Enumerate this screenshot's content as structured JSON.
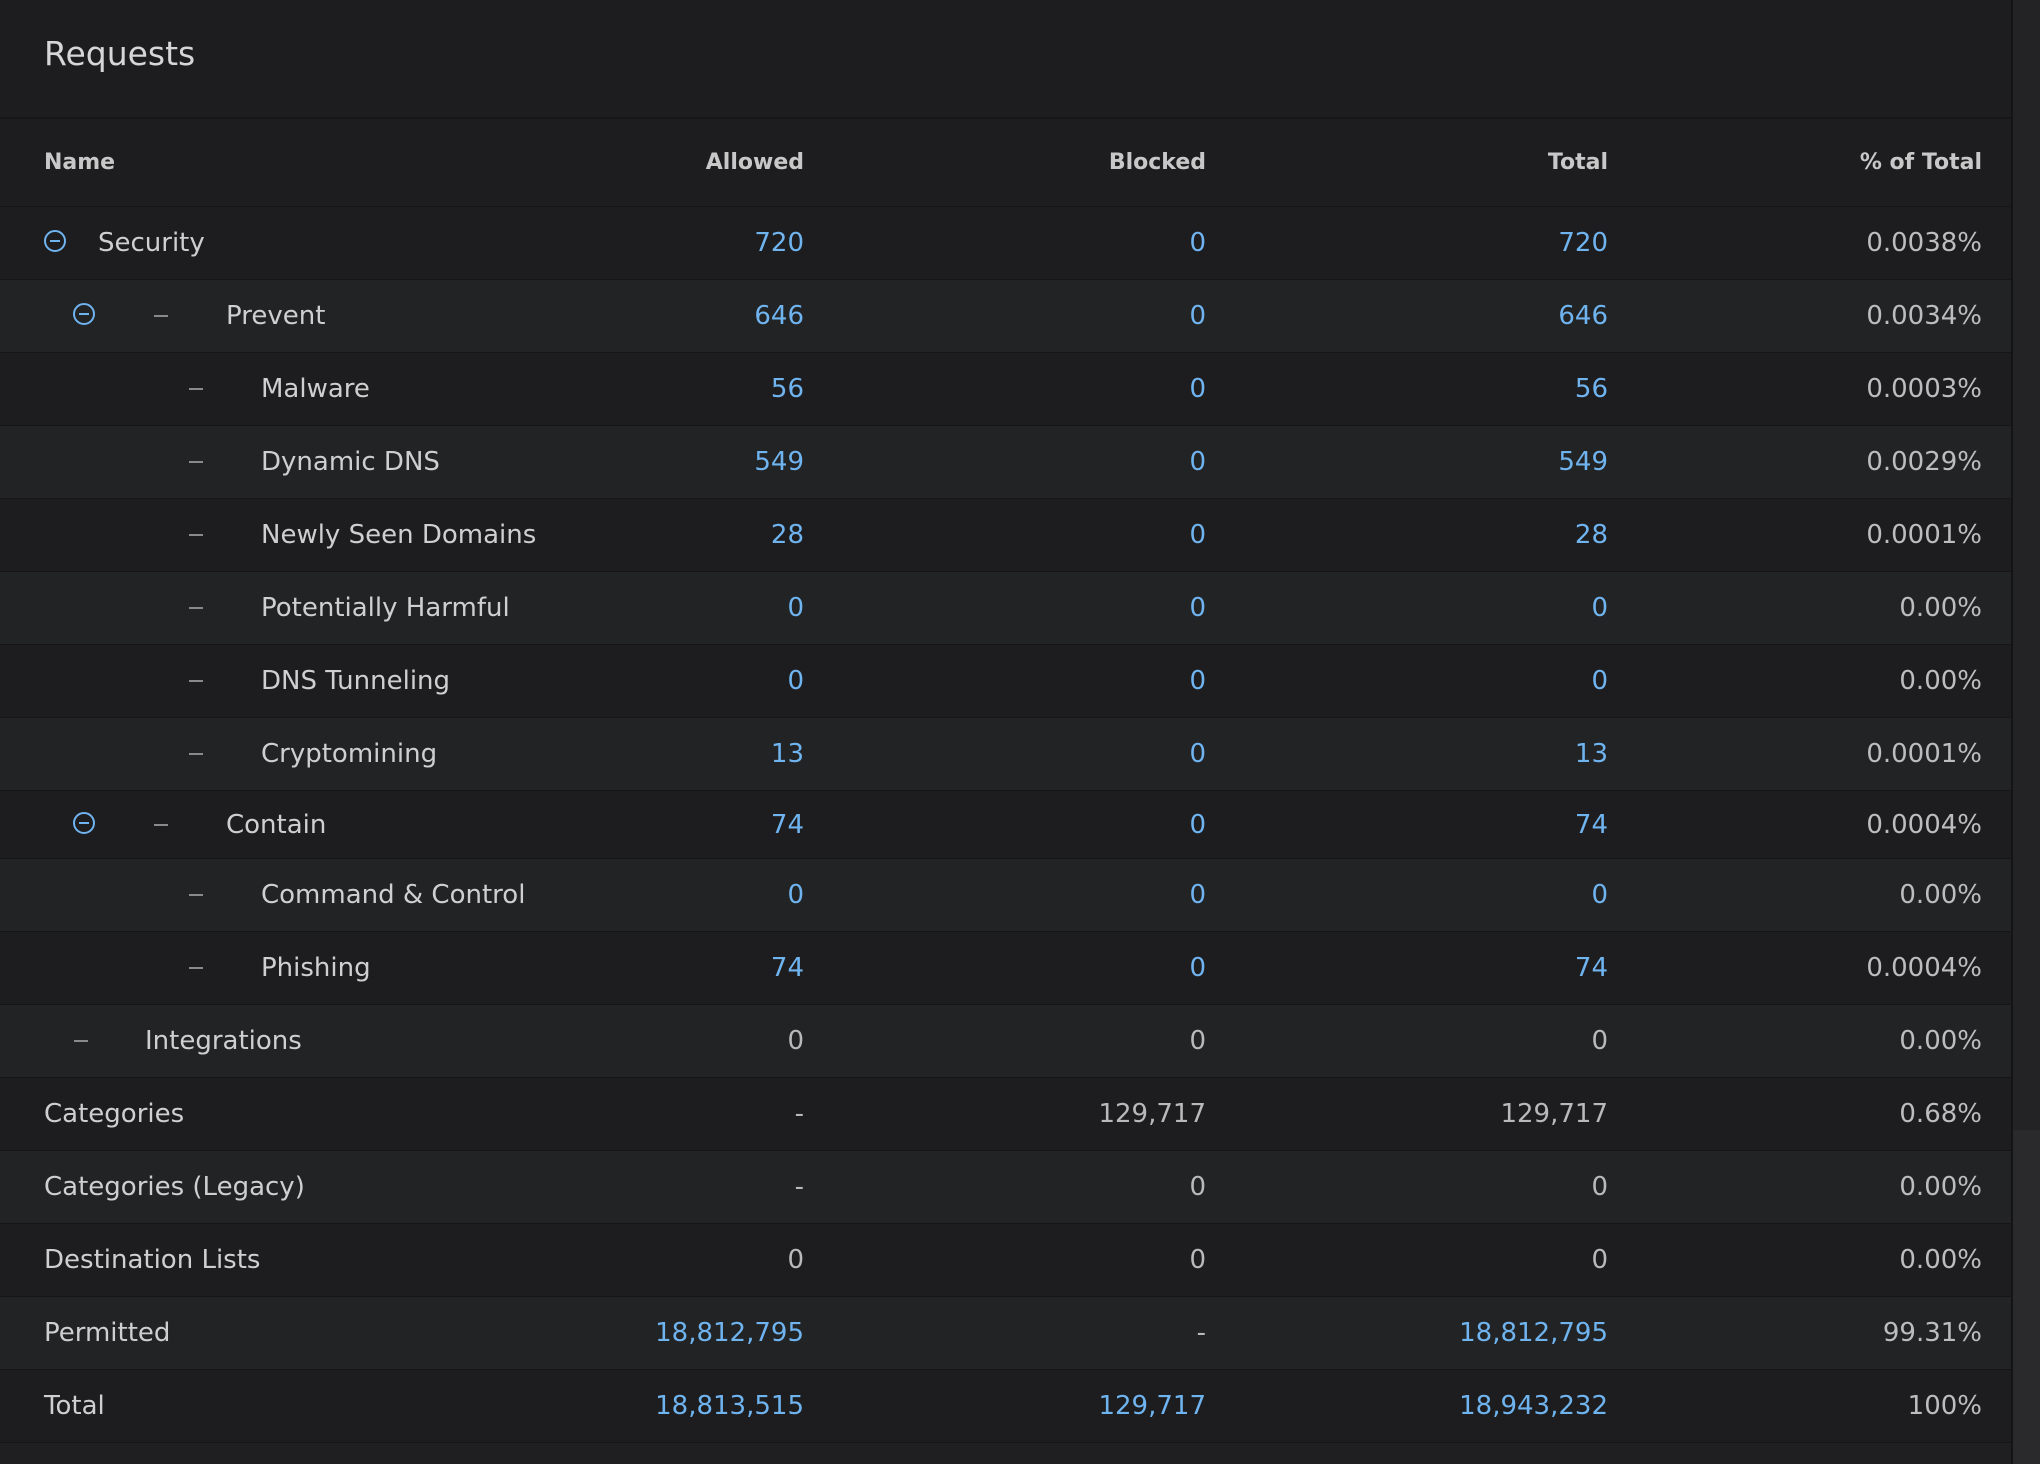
{
  "title": "Requests",
  "columns": {
    "name": "Name",
    "allowed": "Allowed",
    "blocked": "Blocked",
    "total": "Total",
    "pct": "% of Total"
  },
  "rows": [
    {
      "name": "Security",
      "allowed": "720",
      "blocked": "0",
      "total": "720",
      "pct": "0.0038%"
    },
    {
      "name": "Prevent",
      "allowed": "646",
      "blocked": "0",
      "total": "646",
      "pct": "0.0034%"
    },
    {
      "name": "Malware",
      "allowed": "56",
      "blocked": "0",
      "total": "56",
      "pct": "0.0003%"
    },
    {
      "name": "Dynamic DNS",
      "allowed": "549",
      "blocked": "0",
      "total": "549",
      "pct": "0.0029%"
    },
    {
      "name": "Newly Seen Domains",
      "allowed": "28",
      "blocked": "0",
      "total": "28",
      "pct": "0.0001%"
    },
    {
      "name": "Potentially Harmful",
      "allowed": "0",
      "blocked": "0",
      "total": "0",
      "pct": "0.00%"
    },
    {
      "name": "DNS Tunneling",
      "allowed": "0",
      "blocked": "0",
      "total": "0",
      "pct": "0.00%"
    },
    {
      "name": "Cryptomining",
      "allowed": "13",
      "blocked": "0",
      "total": "13",
      "pct": "0.0001%"
    },
    {
      "name": "Contain",
      "allowed": "74",
      "blocked": "0",
      "total": "74",
      "pct": "0.0004%"
    },
    {
      "name": "Command & Control",
      "allowed": "0",
      "blocked": "0",
      "total": "0",
      "pct": "0.00%"
    },
    {
      "name": "Phishing",
      "allowed": "74",
      "blocked": "0",
      "total": "74",
      "pct": "0.0004%"
    },
    {
      "name": "Integrations",
      "allowed": "0",
      "blocked": "0",
      "total": "0",
      "pct": "0.00%"
    },
    {
      "name": "Categories",
      "allowed": "-",
      "blocked": "129,717",
      "total": "129,717",
      "pct": "0.68%"
    },
    {
      "name": "Categories (Legacy)",
      "allowed": "-",
      "blocked": "0",
      "total": "0",
      "pct": "0.00%"
    },
    {
      "name": "Destination Lists",
      "allowed": "0",
      "blocked": "0",
      "total": "0",
      "pct": "0.00%"
    },
    {
      "name": "Permitted",
      "allowed": "18,812,795",
      "blocked": "-",
      "total": "18,812,795",
      "pct": "99.31%"
    },
    {
      "name": "Total",
      "allowed": "18,813,515",
      "blocked": "129,717",
      "total": "18,943,232",
      "pct": "100%"
    }
  ],
  "colors": {
    "link": "#6fb3ef",
    "text": "#cfcfcf",
    "background": "#1f1f21"
  }
}
